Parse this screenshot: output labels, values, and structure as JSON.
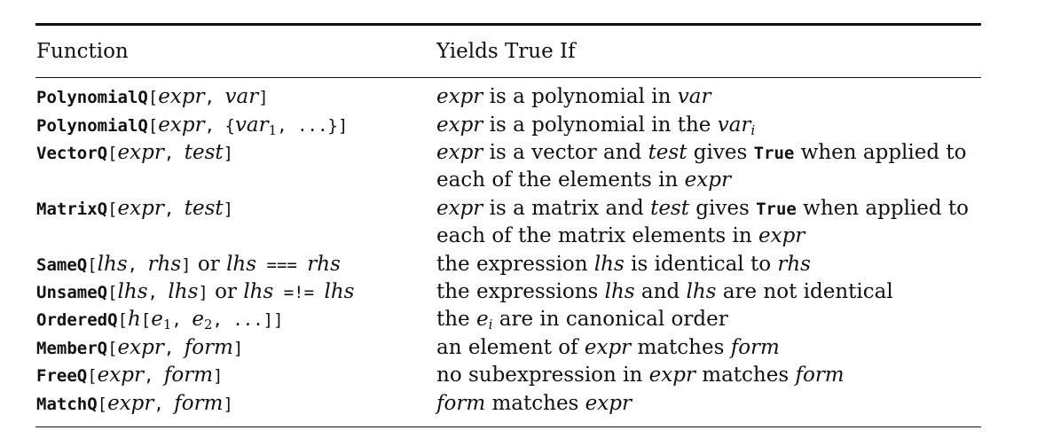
{
  "header": {
    "col1": "Function",
    "col2": "Yields True If"
  },
  "rows": [
    {
      "fn": {
        "name": "PolynomialQ",
        "open": "[",
        "a1": "expr",
        "sep": ", ",
        "a2": "var",
        "close": "]"
      },
      "desc": {
        "p1": "expr",
        "p2": " is a polynomial in ",
        "p3": "var"
      }
    },
    {
      "fn": {
        "name": "PolynomialQ",
        "open": "[",
        "a1": "expr",
        "sep": ", {",
        "a2": "var",
        "sub": "1",
        "tail": ", ...}]"
      },
      "desc": {
        "p1": "expr",
        "p2": " is a polynomial in the ",
        "p3": "var",
        "sub": "i"
      }
    },
    {
      "fn": {
        "name": "VectorQ",
        "open": "[",
        "a1": "expr",
        "sep": ", ",
        "a2": "test",
        "close": "]"
      },
      "desc": {
        "p1": "expr",
        "p2": " is a vector and ",
        "p3": "test",
        "p4": " gives ",
        "p5": "True",
        "p6": " when applied to",
        "line2a": "each of the elements in ",
        "line2b": "expr"
      }
    },
    {
      "fn": {
        "name": "MatrixQ",
        "open": "[",
        "a1": "expr",
        "sep": ", ",
        "a2": "test",
        "close": "]"
      },
      "desc": {
        "p1": "expr",
        "p2": " is a matrix and ",
        "p3": "test",
        "p4": " gives ",
        "p5": "True",
        "p6": " when applied to",
        "line2a": "each of the matrix elements in ",
        "line2b": "expr"
      }
    },
    {
      "fn": {
        "name": "SameQ",
        "open": "[",
        "a1": "lhs",
        "sep": ", ",
        "a2": "rhs",
        "close": "]",
        "or": " or ",
        "b1": "lhs",
        "op": " === ",
        "b2": "rhs"
      },
      "desc": {
        "p1": "the expression ",
        "p2": "lhs",
        "p3": " is identical to ",
        "p4": "rhs"
      }
    },
    {
      "fn": {
        "name": "UnsameQ",
        "open": "[",
        "a1": "lhs",
        "sep": ", ",
        "a2": "lhs",
        "close": "]",
        "or": " or ",
        "b1": "lhs",
        "op": " =!= ",
        "b2": "lhs"
      },
      "desc": {
        "p1": "the expressions ",
        "p2": "lhs",
        "p3": " and ",
        "p4": "lhs",
        "p5": " are not identical"
      }
    },
    {
      "fn": {
        "name": "OrderedQ",
        "open": "[",
        "a1": "h",
        "br": "[",
        "e1": "e",
        "sub1": "1",
        "sep": ", ",
        "e2": "e",
        "sub2": "2",
        "tail": ", ...]]"
      },
      "desc": {
        "p1": "the ",
        "p2": "e",
        "sub": "i",
        "p3": " are in canonical order"
      }
    },
    {
      "fn": {
        "name": "MemberQ",
        "open": "[",
        "a1": "expr",
        "sep": ", ",
        "a2": "form",
        "close": "]"
      },
      "desc": {
        "p1": "an element of ",
        "p2": "expr",
        "p3": " matches ",
        "p4": "form"
      }
    },
    {
      "fn": {
        "name": "FreeQ",
        "open": "[",
        "a1": "expr",
        "sep": ", ",
        "a2": "form",
        "close": "]"
      },
      "desc": {
        "p1": "no subexpression in ",
        "p2": "expr",
        "p3": " matches ",
        "p4": "form"
      }
    },
    {
      "fn": {
        "name": "MatchQ",
        "open": "[",
        "a1": "expr",
        "sep": ", ",
        "a2": "form",
        "close": "]"
      },
      "desc": {
        "p1": "form",
        "p2": " matches ",
        "p3": "expr"
      }
    }
  ]
}
